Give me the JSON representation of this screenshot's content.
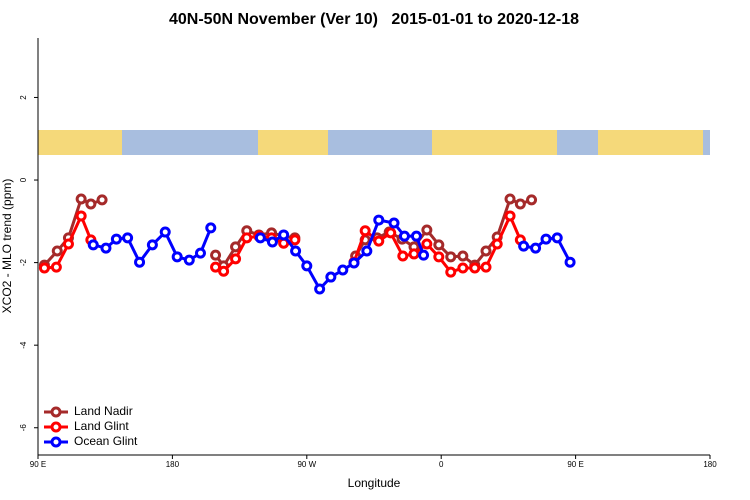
{
  "chart_data": {
    "type": "line",
    "title": "40N-50N November (Ver 10)   2015-01-01 to 2020-12-18",
    "xlabel": "Longitude",
    "ylabel": "XCO2 - MLO trend (ppm)",
    "xlim": [
      90,
      540
    ],
    "xticks": [
      {
        "value": 90,
        "label": "90 E"
      },
      {
        "value": 180,
        "label": "180"
      },
      {
        "value": 270,
        "label": "90 W"
      },
      {
        "value": 360,
        "label": "0"
      },
      {
        "value": 450,
        "label": "90 E"
      },
      {
        "value": 540,
        "label": "180"
      }
    ],
    "ylim": [
      -6.66,
      3.44
    ],
    "yticks": [
      -6,
      -4,
      -2,
      0,
      2
    ],
    "legend": "bottom-left",
    "series": [
      {
        "name": "Land Nadir",
        "color": "#a52a2a",
        "x": [
          94.3,
          102.9,
          110.4,
          118.9,
          125.4,
          132.9,
          null,
          208.9,
          214.3,
          222.3,
          229.8,
          237.9,
          246.4,
          254.5,
          262.0,
          null,
          302.7,
          309.1,
          317.1,
          325.2,
          333.8,
          341.8,
          350.4,
          358.4,
          366.4,
          374.5,
          382.5,
          390.0,
          397.5,
          406.1,
          413.0,
          420.5
        ],
        "values": [
          -2.06,
          -1.72,
          -1.4,
          -0.46,
          -0.58,
          -0.48,
          null,
          -1.82,
          -2.08,
          -1.62,
          -1.23,
          -1.33,
          -1.28,
          -1.36,
          -1.4,
          null,
          -1.84,
          -1.45,
          -1.4,
          -1.26,
          -1.43,
          -1.62,
          -1.21,
          -1.57,
          -1.86,
          -1.84,
          -2.06,
          -1.72,
          -1.38,
          -0.46,
          -0.58,
          -0.48
        ]
      },
      {
        "name": "Land Glint",
        "color": "#ff0000",
        "x": [
          94.3,
          102.3,
          110.4,
          118.9,
          125.4,
          null,
          208.9,
          214.3,
          222.3,
          229.8,
          237.9,
          246.4,
          254.5,
          262.0,
          null,
          301.6,
          309.1,
          318.2,
          326.2,
          334.3,
          341.8,
          350.4,
          358.4,
          366.4,
          374.5,
          382.5,
          390.0,
          397.5,
          406.1,
          413.0
        ],
        "values": [
          -2.13,
          -2.11,
          -1.55,
          -0.87,
          -1.45,
          null,
          -2.11,
          -2.21,
          -1.91,
          -1.4,
          -1.36,
          -1.4,
          -1.53,
          -1.45,
          null,
          -1.99,
          -1.23,
          -1.48,
          -1.28,
          -1.84,
          -1.79,
          -1.55,
          -1.86,
          -2.23,
          -2.13,
          -2.13,
          -2.11,
          -1.55,
          -0.87,
          -1.45
        ]
      },
      {
        "name": "Ocean Glint",
        "color": "#0000ff",
        "x": [
          127.0,
          135.5,
          142.5,
          150.0,
          158.0,
          166.6,
          175.2,
          183.2,
          191.3,
          198.8,
          205.7,
          null,
          238.9,
          247.0,
          254.5,
          262.5,
          270.0,
          278.6,
          286.1,
          294.1,
          301.6,
          310.2,
          318.2,
          328.4,
          335.4,
          343.4,
          348.2,
          null,
          415.2,
          423.2,
          430.2,
          437.7,
          446.3
        ],
        "values": [
          -1.57,
          -1.65,
          -1.43,
          -1.4,
          -1.99,
          -1.57,
          -1.26,
          -1.86,
          -1.94,
          -1.77,
          -1.16,
          null,
          -1.4,
          -1.5,
          -1.33,
          -1.72,
          -2.08,
          -2.64,
          -2.35,
          -2.18,
          -2.01,
          -1.72,
          -0.97,
          -1.04,
          -1.36,
          -1.36,
          -1.82,
          null,
          -1.6,
          -1.65,
          -1.43,
          -1.4,
          -1.99
        ]
      }
    ]
  }
}
